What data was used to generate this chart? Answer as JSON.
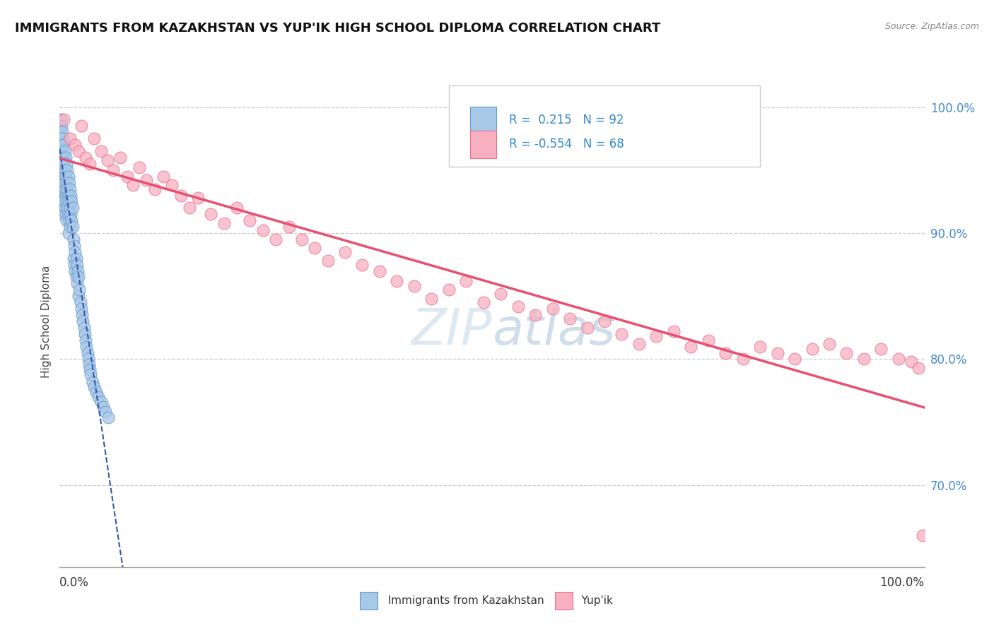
{
  "title": "IMMIGRANTS FROM KAZAKHSTAN VS YUP'IK HIGH SCHOOL DIPLOMA CORRELATION CHART",
  "source": "Source: ZipAtlas.com",
  "ylabel": "High School Diploma",
  "ylabel_right_ticks": [
    0.7,
    0.8,
    0.9,
    1.0
  ],
  "ylabel_right_labels": [
    "70.0%",
    "80.0%",
    "90.0%",
    "100.0%"
  ],
  "xlim": [
    0.0,
    1.0
  ],
  "ylim": [
    0.635,
    1.025
  ],
  "legend_blue_r": "0.215",
  "legend_blue_n": "92",
  "legend_pink_r": "-0.554",
  "legend_pink_n": "68",
  "blue_color": "#a8c8e8",
  "blue_edge_color": "#6699cc",
  "pink_color": "#f8b0c0",
  "pink_edge_color": "#e87090",
  "blue_line_color": "#3355aa",
  "pink_line_color": "#e85070",
  "watermark_color": "#dde8f0",
  "background_color": "#ffffff",
  "grid_color": "#cccccc",
  "blue_scatter_x": [
    0.0,
    0.0,
    0.0,
    0.001,
    0.001,
    0.001,
    0.001,
    0.001,
    0.002,
    0.002,
    0.002,
    0.002,
    0.002,
    0.003,
    0.003,
    0.003,
    0.003,
    0.004,
    0.004,
    0.004,
    0.004,
    0.004,
    0.005,
    0.005,
    0.005,
    0.005,
    0.006,
    0.006,
    0.006,
    0.006,
    0.007,
    0.007,
    0.007,
    0.007,
    0.008,
    0.008,
    0.008,
    0.008,
    0.009,
    0.009,
    0.009,
    0.01,
    0.01,
    0.01,
    0.01,
    0.011,
    0.011,
    0.011,
    0.012,
    0.012,
    0.012,
    0.013,
    0.013,
    0.014,
    0.014,
    0.015,
    0.015,
    0.016,
    0.016,
    0.017,
    0.017,
    0.018,
    0.018,
    0.019,
    0.019,
    0.02,
    0.02,
    0.021,
    0.022,
    0.022,
    0.023,
    0.024,
    0.025,
    0.026,
    0.027,
    0.028,
    0.029,
    0.03,
    0.031,
    0.032,
    0.033,
    0.034,
    0.035,
    0.036,
    0.038,
    0.04,
    0.042,
    0.045,
    0.048,
    0.05,
    0.053,
    0.056
  ],
  "blue_scatter_y": [
    0.98,
    0.972,
    0.965,
    0.99,
    0.975,
    0.96,
    0.945,
    0.93,
    0.985,
    0.97,
    0.955,
    0.94,
    0.925,
    0.98,
    0.965,
    0.95,
    0.935,
    0.975,
    0.96,
    0.945,
    0.93,
    0.915,
    0.97,
    0.955,
    0.94,
    0.925,
    0.965,
    0.95,
    0.935,
    0.92,
    0.96,
    0.945,
    0.93,
    0.915,
    0.955,
    0.94,
    0.925,
    0.91,
    0.95,
    0.935,
    0.92,
    0.945,
    0.93,
    0.915,
    0.9,
    0.94,
    0.925,
    0.91,
    0.935,
    0.92,
    0.905,
    0.93,
    0.915,
    0.925,
    0.91,
    0.92,
    0.905,
    0.895,
    0.88,
    0.89,
    0.875,
    0.885,
    0.87,
    0.88,
    0.865,
    0.875,
    0.86,
    0.87,
    0.865,
    0.85,
    0.855,
    0.845,
    0.84,
    0.835,
    0.83,
    0.825,
    0.82,
    0.815,
    0.81,
    0.805,
    0.8,
    0.796,
    0.792,
    0.788,
    0.782,
    0.778,
    0.774,
    0.77,
    0.766,
    0.762,
    0.758,
    0.754
  ],
  "pink_scatter_x": [
    0.005,
    0.012,
    0.018,
    0.022,
    0.025,
    0.03,
    0.035,
    0.04,
    0.048,
    0.055,
    0.062,
    0.07,
    0.078,
    0.085,
    0.092,
    0.1,
    0.11,
    0.12,
    0.13,
    0.14,
    0.15,
    0.16,
    0.175,
    0.19,
    0.205,
    0.22,
    0.235,
    0.25,
    0.265,
    0.28,
    0.295,
    0.31,
    0.33,
    0.35,
    0.37,
    0.39,
    0.41,
    0.43,
    0.45,
    0.47,
    0.49,
    0.51,
    0.53,
    0.55,
    0.57,
    0.59,
    0.61,
    0.63,
    0.65,
    0.67,
    0.69,
    0.71,
    0.73,
    0.75,
    0.77,
    0.79,
    0.81,
    0.83,
    0.85,
    0.87,
    0.89,
    0.91,
    0.93,
    0.95,
    0.97,
    0.985,
    0.993,
    0.998
  ],
  "pink_scatter_y": [
    0.99,
    0.975,
    0.97,
    0.965,
    0.985,
    0.96,
    0.955,
    0.975,
    0.965,
    0.958,
    0.95,
    0.96,
    0.945,
    0.938,
    0.952,
    0.942,
    0.935,
    0.945,
    0.938,
    0.93,
    0.92,
    0.928,
    0.915,
    0.908,
    0.92,
    0.91,
    0.902,
    0.895,
    0.905,
    0.895,
    0.888,
    0.878,
    0.885,
    0.875,
    0.87,
    0.862,
    0.858,
    0.848,
    0.855,
    0.862,
    0.845,
    0.852,
    0.842,
    0.835,
    0.84,
    0.832,
    0.825,
    0.83,
    0.82,
    0.812,
    0.818,
    0.822,
    0.81,
    0.815,
    0.805,
    0.8,
    0.81,
    0.805,
    0.8,
    0.808,
    0.812,
    0.805,
    0.8,
    0.808,
    0.8,
    0.798,
    0.793,
    0.66
  ]
}
